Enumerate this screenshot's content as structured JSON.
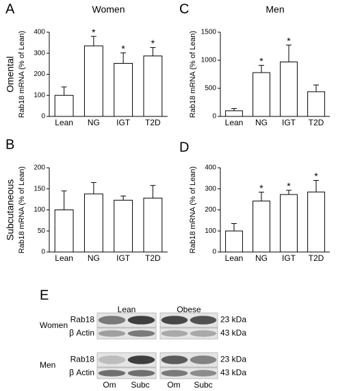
{
  "chart_data": [
    {
      "type": "bar",
      "panel_label": "A",
      "title": "Women",
      "row_label": "Omental",
      "ylabel": "Rab18 mRNA (% of Lean)",
      "categories": [
        "Lean",
        "NG",
        "IGT",
        "T2D"
      ],
      "values": [
        100,
        335,
        252,
        287
      ],
      "errors": [
        40,
        45,
        50,
        40
      ],
      "annotations": [
        null,
        "*",
        "*",
        "*"
      ],
      "color": "#ffffff",
      "ylim": [
        0,
        400
      ],
      "yticks": [
        0,
        100,
        200,
        300,
        400
      ]
    },
    {
      "type": "bar",
      "panel_label": "B",
      "row_label": "Subcutaneous",
      "ylabel": "Rab18 mRNA (% of Lean)",
      "categories": [
        "Lean",
        "NG",
        "IGT",
        "T2D"
      ],
      "values": [
        100,
        138,
        123,
        128
      ],
      "errors": [
        45,
        27,
        10,
        30
      ],
      "color": "#ffffff",
      "ylim": [
        0,
        200
      ],
      "yticks": [
        0,
        50,
        100,
        150,
        200
      ]
    },
    {
      "type": "bar",
      "panel_label": "C",
      "title": "Men",
      "ylabel": "Rab18 mRNA (% of Lean)",
      "categories": [
        "Lean",
        "NG",
        "IGT",
        "T2D"
      ],
      "values": [
        100,
        780,
        970,
        440
      ],
      "errors": [
        40,
        130,
        300,
        120
      ],
      "annotations": [
        null,
        "*",
        "*",
        null
      ],
      "color": "#ffffff",
      "ylim": [
        0,
        1500
      ],
      "yticks": [
        0,
        500,
        1000,
        1500
      ]
    },
    {
      "type": "bar",
      "panel_label": "D",
      "ylabel": "Rab18 mRNA (% of Lean)",
      "categories": [
        "Lean",
        "NG",
        "IGT",
        "T2D"
      ],
      "values": [
        100,
        242,
        273,
        285
      ],
      "errors": [
        35,
        42,
        20,
        55
      ],
      "annotations": [
        null,
        "*",
        "*",
        "*"
      ],
      "color": "#ffffff",
      "ylim": [
        0,
        400
      ],
      "yticks": [
        0,
        100,
        200,
        300,
        400
      ]
    }
  ],
  "blot": {
    "panel_label": "E",
    "columns": [
      "Lean",
      "Obese"
    ],
    "groups": [
      {
        "name": "Women",
        "rows": [
          {
            "name": "Rab18",
            "size": "23 kDa"
          },
          {
            "name": "β Actin",
            "size": "43 kDa"
          }
        ]
      },
      {
        "name": "Men",
        "rows": [
          {
            "name": "Rab18",
            "size": "23 kDa"
          },
          {
            "name": "β Actin",
            "size": "43 kDa"
          }
        ]
      }
    ],
    "lanes": [
      "Om",
      "Subc",
      "Om",
      "Subc"
    ]
  }
}
